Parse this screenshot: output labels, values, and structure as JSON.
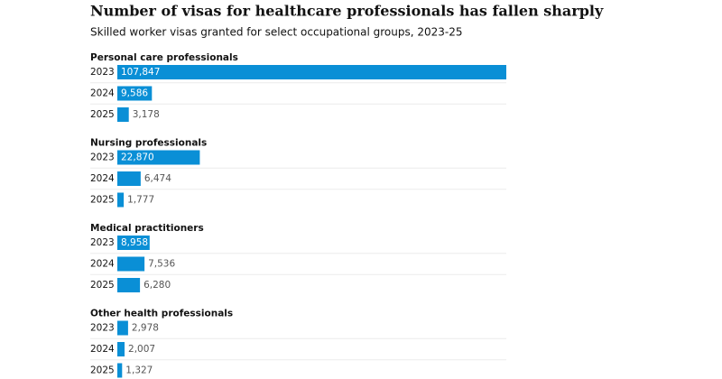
{
  "chart_data": {
    "type": "bar",
    "title": "Number of visas for healthcare professionals has fallen sharply",
    "subtitle": "Skilled worker visas granted for select occupational groups, 2023-25",
    "color": "#0a8fd6",
    "groups": [
      {
        "name": "Personal care professionals",
        "categories": [
          "2023",
          "2024",
          "2025"
        ],
        "values": [
          107847,
          9586,
          3178
        ],
        "value_labels": [
          "107,847",
          "9,586",
          "3,178"
        ]
      },
      {
        "name": "Nursing professionals",
        "categories": [
          "2023",
          "2024",
          "2025"
        ],
        "values": [
          22870,
          6474,
          1777
        ],
        "value_labels": [
          "22,870",
          "6,474",
          "1,777"
        ]
      },
      {
        "name": "Medical practitioners",
        "categories": [
          "2023",
          "2024",
          "2025"
        ],
        "values": [
          8958,
          7536,
          6280
        ],
        "value_labels": [
          "8,958",
          "7,536",
          "6,280"
        ]
      },
      {
        "name": "Other health professionals",
        "categories": [
          "2023",
          "2024",
          "2025"
        ],
        "values": [
          2978,
          2007,
          1327
        ],
        "value_labels": [
          "2,978",
          "2,007",
          "1,327"
        ]
      }
    ]
  }
}
